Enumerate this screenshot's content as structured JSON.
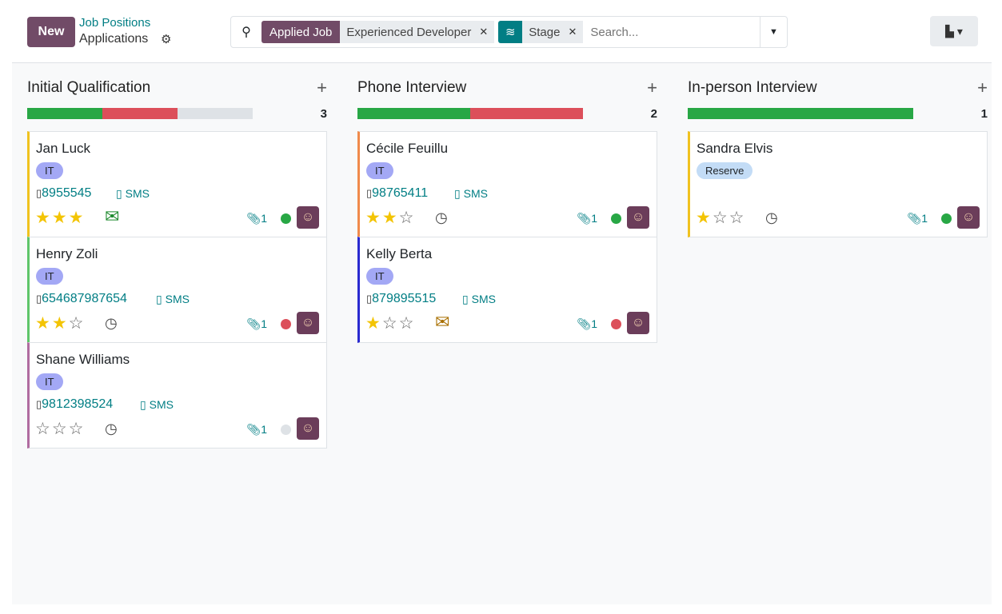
{
  "header": {
    "new_label": "New",
    "breadcrumb_parent": "Job Positions",
    "breadcrumb_current": "Applications"
  },
  "search": {
    "facets": [
      {
        "label": "Applied Job",
        "value": "Experienced Developer",
        "icon": ""
      },
      {
        "label": "",
        "value": "Stage",
        "icon": "layers-icon"
      }
    ],
    "placeholder": "Search..."
  },
  "colors": {
    "green": "#28a745",
    "red": "#dc4f5a",
    "grey": "#dee2e6",
    "primary": "#714b67",
    "teal": "#017e84"
  },
  "columns": [
    {
      "title": "Initial Qualification",
      "count": "3",
      "progress": {
        "green": 1,
        "red": 1,
        "grey": 1
      },
      "cards": [
        {
          "name": "Jan Luck",
          "tag": "IT",
          "phone": "8955545",
          "sms": "SMS",
          "stars": 3,
          "activity": "envelope-green",
          "attachments": "1",
          "state": "green",
          "border": "#f0c21f"
        },
        {
          "name": "Henry Zoli",
          "tag": "IT",
          "phone": "654687987654",
          "sms": "SMS",
          "stars": 2,
          "activity": "clock",
          "attachments": "1",
          "state": "red",
          "border": "#5fc56a"
        },
        {
          "name": "Shane Williams",
          "tag": "IT",
          "phone": "9812398524",
          "sms": "SMS",
          "stars": 0,
          "activity": "clock",
          "attachments": "1",
          "state": "grey",
          "border": "#b06ca0"
        }
      ]
    },
    {
      "title": "Phone Interview",
      "count": "2",
      "progress": {
        "green": 1,
        "red": 1,
        "grey": 0
      },
      "cards": [
        {
          "name": "Cécile Feuillu",
          "tag": "IT",
          "phone": "98765411",
          "sms": "SMS",
          "stars": 2,
          "activity": "clock",
          "attachments": "1",
          "state": "green",
          "border": "#f08a4b"
        },
        {
          "name": "Kelly Berta",
          "tag": "IT",
          "phone": "879895515",
          "sms": "SMS",
          "stars": 1,
          "activity": "envelope-orange",
          "attachments": "1",
          "state": "red",
          "border": "#2a2ad0"
        }
      ]
    },
    {
      "title": "In-person Interview",
      "count": "1",
      "progress": {
        "green": 1,
        "red": 0,
        "grey": 0
      },
      "cards": [
        {
          "name": "Sandra Elvis",
          "tag": "Reserve",
          "phone": "",
          "sms": "",
          "stars": 1,
          "activity": "clock",
          "attachments": "1",
          "state": "green",
          "border": "#f0c21f"
        }
      ]
    }
  ]
}
